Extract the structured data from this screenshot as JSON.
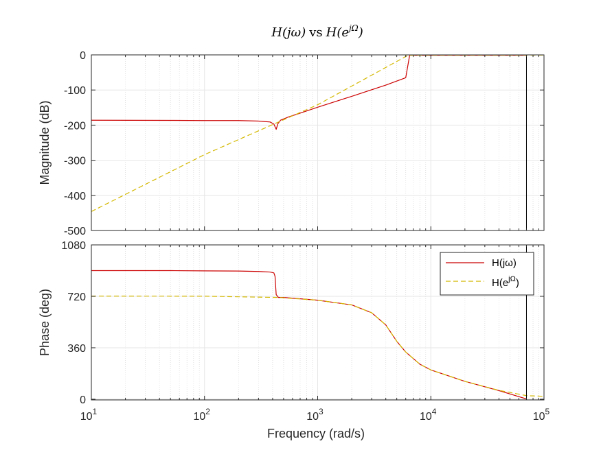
{
  "chart_data": {
    "type": "line",
    "title": {
      "h": "H",
      "jw": "(jω)",
      "vs": "vs",
      "h2": "H",
      "open": "(e",
      "sup": "jΩ",
      "close": ")"
    },
    "xlabel": "Frequency  (rad/s)",
    "xscale": "log",
    "xlim": [
      10,
      100000
    ],
    "x_ticks": [
      {
        "base": "10",
        "exp": "1"
      },
      {
        "base": "10",
        "exp": "2"
      },
      {
        "base": "10",
        "exp": "3"
      },
      {
        "base": "10",
        "exp": "4"
      },
      {
        "base": "10",
        "exp": "5"
      }
    ],
    "vertical_marker": {
      "x": 70000
    },
    "grid": true,
    "colors": {
      "series1": "#cc0000",
      "series2": "#d4b800",
      "axes": "#262626",
      "grid": "#e6e6e6",
      "marker": "#000000"
    },
    "panels": [
      {
        "ylabel": "Magnitude (dB)",
        "ylim": [
          -500,
          0
        ],
        "yticks": [
          "0",
          "-100",
          "-200",
          "-300",
          "-400",
          "-500"
        ],
        "ytick_values": [
          0,
          -100,
          -200,
          -300,
          -400,
          -500
        ],
        "series": [
          {
            "points": [
              [
                10,
                -186
              ],
              [
                50,
                -186.5
              ],
              [
                100,
                -187
              ],
              [
                200,
                -187
              ],
              [
                300,
                -188.5
              ],
              [
                380,
                -191
              ],
              [
                410,
                -197
              ],
              [
                430,
                -212
              ],
              [
                445,
                -196
              ],
              [
                470,
                -186
              ],
              [
                550,
                -177
              ],
              [
                700,
                -166
              ],
              [
                1000,
                -149
              ],
              [
                2000,
                -118
              ],
              [
                4000,
                -86
              ],
              [
                6000,
                -65
              ],
              [
                6500,
                -1
              ],
              [
                10000,
                -1
              ],
              [
                70000,
                -1
              ]
            ]
          },
          {
            "points": [
              [
                10,
                -446
              ],
              [
                100,
                -284
              ],
              [
                1000,
                -142
              ],
              [
                6300,
                -1
              ],
              [
                10000,
                -0.5
              ],
              [
                100000,
                -0.5
              ]
            ]
          }
        ]
      },
      {
        "ylabel": "Phase (deg)",
        "ylim": [
          -5,
          1080
        ],
        "yticks": [
          "1080",
          "720",
          "360",
          "0"
        ],
        "ytick_values": [
          1080,
          720,
          360,
          0
        ],
        "series": [
          {
            "name_base": "H(jω)",
            "points": [
              [
                10,
                900
              ],
              [
                50,
                900
              ],
              [
                100,
                898
              ],
              [
                200,
                897
              ],
              [
                300,
                894
              ],
              [
                380,
                890
              ],
              [
                410,
                884
              ],
              [
                420,
                860
              ],
              [
                430,
                732
              ],
              [
                450,
                712
              ],
              [
                500,
                712
              ],
              [
                1000,
                693
              ],
              [
                2000,
                660
              ],
              [
                3000,
                605
              ],
              [
                4000,
                520
              ],
              [
                5000,
                405
              ],
              [
                6000,
                330
              ],
              [
                8000,
                245
              ],
              [
                10000,
                205
              ],
              [
                20000,
                125
              ],
              [
                40000,
                60
              ],
              [
                70000,
                2
              ]
            ]
          },
          {
            "name_base": "H(e",
            "name_sup": "jΩ",
            "name_close": ")",
            "points": [
              [
                10,
                722
              ],
              [
                100,
                721
              ],
              [
                450,
                712
              ],
              [
                1000,
                693
              ],
              [
                2000,
                660
              ],
              [
                3000,
                605
              ],
              [
                4000,
                520
              ],
              [
                5000,
                405
              ],
              [
                6000,
                330
              ],
              [
                8000,
                245
              ],
              [
                10000,
                205
              ],
              [
                20000,
                125
              ],
              [
                40000,
                62
              ],
              [
                70000,
                25
              ],
              [
                100000,
                20
              ]
            ]
          }
        ]
      }
    ]
  }
}
